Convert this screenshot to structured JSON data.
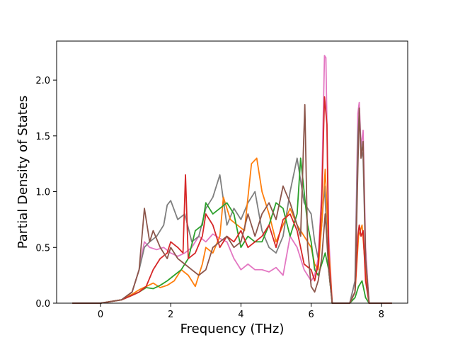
{
  "chart_data": {
    "type": "line",
    "title": "",
    "xlabel": "Frequency (THz)",
    "ylabel": "Partial Density of States",
    "xlim": [
      -1.25,
      8.75
    ],
    "ylim": [
      0.0,
      2.35
    ],
    "xticks": [
      0,
      2,
      4,
      6,
      8
    ],
    "xtick_labels": [
      "0",
      "2",
      "4",
      "6",
      "8"
    ],
    "yticks": [
      0.0,
      0.5,
      1.0,
      1.5,
      2.0
    ],
    "ytick_labels": [
      "0.0",
      "0.5",
      "1.0",
      "1.5",
      "2.0"
    ],
    "grid": false,
    "legend": "none",
    "series": [
      {
        "color": "#e377c2",
        "x": [
          -0.8,
          0.0,
          0.6,
          0.9,
          1.1,
          1.25,
          1.4,
          1.6,
          1.8,
          2.0,
          2.2,
          2.4,
          2.6,
          2.8,
          3.0,
          3.2,
          3.4,
          3.6,
          3.8,
          4.0,
          4.2,
          4.4,
          4.6,
          4.8,
          5.0,
          5.2,
          5.4,
          5.6,
          5.8,
          6.0,
          6.1,
          6.2,
          6.3,
          6.38,
          6.42,
          6.5,
          6.6,
          7.1,
          7.25,
          7.33,
          7.37,
          7.42,
          7.48,
          7.55,
          7.65,
          8.3
        ],
        "y": [
          0.0,
          0.0,
          0.03,
          0.1,
          0.3,
          0.55,
          0.5,
          0.48,
          0.5,
          0.45,
          0.42,
          0.45,
          0.5,
          0.6,
          0.55,
          0.62,
          0.58,
          0.55,
          0.4,
          0.3,
          0.35,
          0.3,
          0.3,
          0.28,
          0.32,
          0.25,
          0.6,
          0.5,
          0.3,
          0.2,
          0.25,
          0.4,
          1.0,
          2.22,
          2.2,
          0.6,
          0.0,
          0.0,
          0.2,
          1.7,
          1.8,
          1.4,
          1.55,
          0.5,
          0.0,
          0.0
        ]
      },
      {
        "color": "#7f7f7f",
        "x": [
          -0.8,
          0.0,
          0.6,
          0.9,
          1.1,
          1.25,
          1.4,
          1.6,
          1.8,
          1.9,
          2.0,
          2.2,
          2.4,
          2.6,
          2.8,
          3.0,
          3.2,
          3.4,
          3.6,
          3.8,
          4.0,
          4.2,
          4.4,
          4.6,
          4.8,
          5.0,
          5.2,
          5.4,
          5.6,
          5.8,
          6.0,
          6.1,
          6.2,
          6.3,
          6.38,
          6.42,
          6.5,
          6.6,
          7.1,
          7.25,
          7.33,
          7.37,
          7.42,
          7.48,
          7.55,
          7.65,
          8.3
        ],
        "y": [
          0.0,
          0.0,
          0.03,
          0.1,
          0.3,
          0.5,
          0.55,
          0.6,
          0.7,
          0.88,
          0.92,
          0.75,
          0.8,
          0.55,
          0.6,
          0.85,
          0.95,
          1.15,
          0.7,
          0.85,
          0.75,
          0.9,
          1.0,
          0.65,
          0.5,
          0.45,
          0.6,
          1.0,
          1.3,
          0.9,
          0.8,
          0.55,
          0.4,
          0.7,
          1.05,
          0.8,
          0.3,
          0.0,
          0.0,
          0.2,
          1.5,
          1.7,
          1.4,
          1.3,
          0.4,
          0.0,
          0.0
        ]
      },
      {
        "color": "#ff7f0e",
        "x": [
          -0.8,
          0.0,
          0.6,
          0.9,
          1.1,
          1.3,
          1.5,
          1.7,
          1.9,
          2.1,
          2.3,
          2.5,
          2.7,
          2.9,
          3.0,
          3.2,
          3.4,
          3.5,
          3.7,
          3.9,
          4.1,
          4.3,
          4.45,
          4.6,
          4.8,
          5.0,
          5.2,
          5.4,
          5.6,
          5.8,
          6.0,
          6.1,
          6.2,
          6.3,
          6.4,
          6.5,
          6.6,
          7.1,
          7.25,
          7.35,
          7.45,
          7.55,
          7.65,
          8.3
        ],
        "y": [
          0.0,
          0.0,
          0.03,
          0.08,
          0.12,
          0.15,
          0.18,
          0.14,
          0.16,
          0.2,
          0.3,
          0.25,
          0.15,
          0.35,
          0.5,
          0.45,
          0.6,
          0.95,
          0.75,
          0.7,
          0.65,
          1.25,
          1.3,
          1.0,
          0.8,
          0.55,
          0.7,
          0.85,
          0.7,
          0.6,
          0.5,
          0.35,
          0.3,
          0.7,
          1.2,
          0.5,
          0.0,
          0.0,
          0.1,
          0.6,
          0.7,
          0.3,
          0.0,
          0.0
        ]
      },
      {
        "color": "#2ca02c",
        "x": [
          -0.8,
          0.0,
          0.6,
          0.9,
          1.1,
          1.3,
          1.5,
          1.7,
          1.9,
          2.1,
          2.3,
          2.5,
          2.7,
          2.9,
          3.0,
          3.2,
          3.4,
          3.6,
          3.8,
          4.0,
          4.2,
          4.4,
          4.6,
          4.8,
          5.0,
          5.2,
          5.4,
          5.6,
          5.7,
          5.9,
          6.0,
          6.1,
          6.2,
          6.3,
          6.4,
          6.5,
          6.6,
          7.1,
          7.25,
          7.35,
          7.45,
          7.55,
          7.65,
          8.3
        ],
        "y": [
          0.0,
          0.0,
          0.03,
          0.07,
          0.1,
          0.14,
          0.13,
          0.16,
          0.2,
          0.25,
          0.3,
          0.4,
          0.65,
          0.7,
          0.9,
          0.8,
          0.85,
          0.9,
          0.8,
          0.5,
          0.6,
          0.55,
          0.55,
          0.7,
          0.9,
          0.85,
          0.6,
          0.8,
          1.3,
          0.7,
          0.55,
          0.3,
          0.25,
          0.35,
          0.45,
          0.3,
          0.0,
          0.0,
          0.05,
          0.15,
          0.2,
          0.05,
          0.0,
          0.0
        ]
      },
      {
        "color": "#d62728",
        "x": [
          -0.8,
          0.0,
          0.6,
          0.9,
          1.1,
          1.3,
          1.5,
          1.7,
          1.9,
          2.0,
          2.2,
          2.35,
          2.42,
          2.5,
          2.7,
          2.9,
          3.0,
          3.2,
          3.4,
          3.6,
          3.8,
          4.0,
          4.2,
          4.4,
          4.6,
          4.8,
          5.0,
          5.2,
          5.4,
          5.6,
          5.8,
          6.0,
          6.1,
          6.2,
          6.3,
          6.38,
          6.45,
          6.5,
          6.6,
          7.1,
          7.25,
          7.33,
          7.37,
          7.42,
          7.48,
          7.55,
          7.65,
          8.3
        ],
        "y": [
          0.0,
          0.0,
          0.03,
          0.07,
          0.1,
          0.15,
          0.3,
          0.4,
          0.45,
          0.55,
          0.5,
          0.45,
          1.15,
          0.4,
          0.45,
          0.6,
          0.8,
          0.7,
          0.5,
          0.6,
          0.55,
          0.65,
          0.5,
          0.55,
          0.6,
          0.7,
          0.5,
          0.75,
          0.8,
          0.65,
          0.35,
          0.3,
          0.2,
          0.35,
          0.9,
          1.85,
          1.6,
          0.4,
          0.0,
          0.0,
          0.1,
          0.6,
          0.7,
          0.6,
          0.65,
          0.2,
          0.0,
          0.0
        ]
      },
      {
        "color": "#8c564b",
        "x": [
          -0.8,
          0.0,
          0.6,
          0.9,
          1.1,
          1.25,
          1.4,
          1.5,
          1.7,
          1.9,
          2.0,
          2.2,
          2.4,
          2.6,
          2.8,
          3.0,
          3.2,
          3.4,
          3.6,
          3.8,
          4.0,
          4.2,
          4.4,
          4.6,
          4.8,
          5.0,
          5.2,
          5.4,
          5.6,
          5.7,
          5.82,
          5.9,
          6.0,
          6.1,
          6.2,
          6.3,
          6.4,
          6.5,
          6.6,
          7.1,
          7.25,
          7.33,
          7.37,
          7.42,
          7.48,
          7.55,
          7.65,
          8.3
        ],
        "y": [
          0.0,
          0.0,
          0.03,
          0.1,
          0.3,
          0.85,
          0.55,
          0.65,
          0.5,
          0.4,
          0.5,
          0.4,
          0.35,
          0.3,
          0.25,
          0.3,
          0.5,
          0.55,
          0.6,
          0.5,
          0.55,
          0.8,
          0.6,
          0.8,
          0.9,
          0.75,
          1.05,
          0.9,
          0.7,
          0.6,
          1.78,
          0.5,
          0.15,
          0.1,
          0.2,
          0.4,
          0.8,
          0.3,
          0.0,
          0.0,
          0.1,
          1.2,
          1.75,
          1.3,
          1.45,
          0.4,
          0.0,
          0.0
        ]
      }
    ]
  }
}
